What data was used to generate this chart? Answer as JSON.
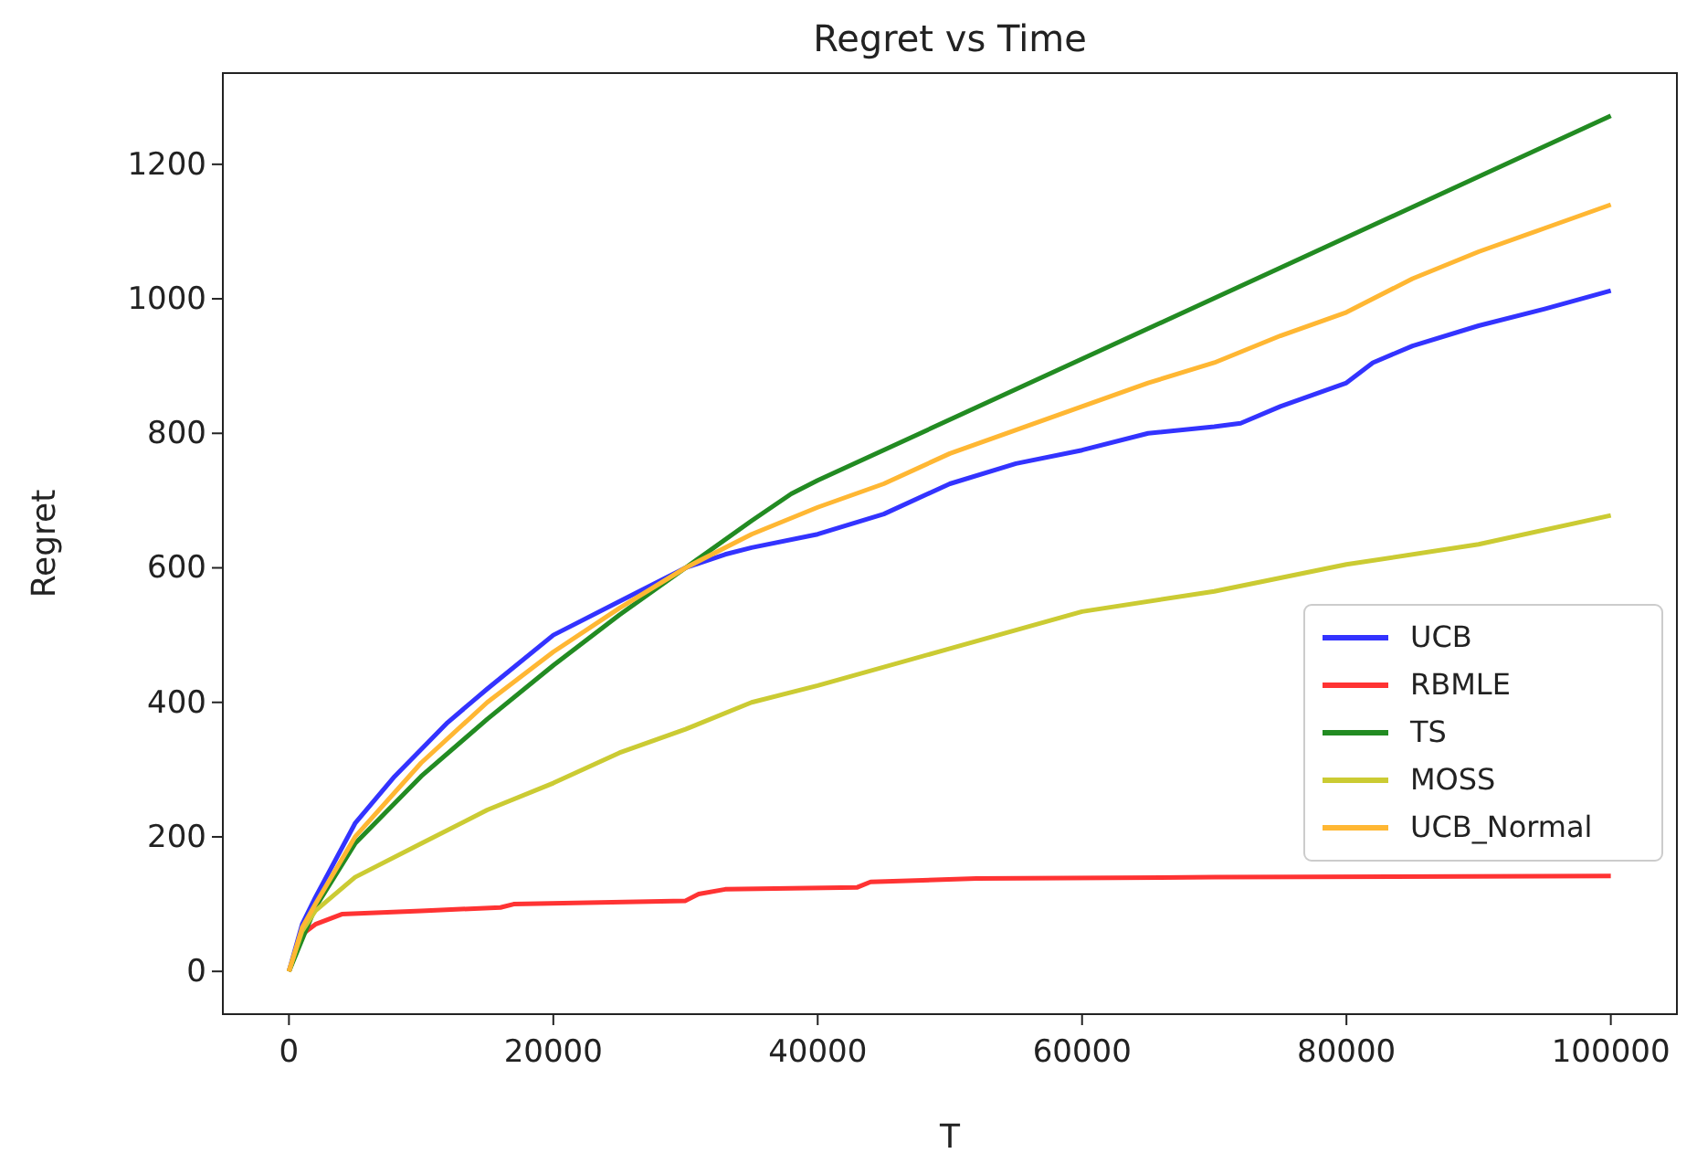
{
  "chart_data": {
    "type": "line",
    "title": "Regret vs Time",
    "xlabel": "T",
    "ylabel": "Regret",
    "xlim": [
      -5000,
      105000
    ],
    "ylim": [
      -63.6,
      1335.6
    ],
    "xticks": [
      0,
      20000,
      40000,
      60000,
      80000,
      100000
    ],
    "yticks": [
      0,
      200,
      400,
      600,
      800,
      1000,
      1200
    ],
    "legend": "bottom right",
    "grid": false,
    "series": [
      {
        "name": "UCB",
        "color": "#3333ff",
        "x": [
          0,
          1000,
          2000,
          5000,
          8000,
          10000,
          12000,
          15000,
          20000,
          25000,
          30000,
          33000,
          35000,
          40000,
          45000,
          50000,
          55000,
          60000,
          65000,
          70000,
          72000,
          75000,
          80000,
          82000,
          85000,
          90000,
          95000,
          100000
        ],
        "values": [
          0,
          70,
          110,
          220,
          290,
          330,
          370,
          420,
          500,
          550,
          600,
          620,
          630,
          650,
          680,
          725,
          755,
          775,
          800,
          810,
          815,
          840,
          875,
          905,
          930,
          960,
          985,
          1012
        ]
      },
      {
        "name": "RBMLE",
        "color": "#ff3333",
        "x": [
          0,
          1000,
          2000,
          4000,
          10000,
          16000,
          17000,
          30000,
          31000,
          33000,
          43000,
          44000,
          52000,
          70000,
          100000
        ],
        "values": [
          0,
          55,
          70,
          85,
          90,
          95,
          100,
          105,
          115,
          122,
          125,
          133,
          138,
          140,
          142
        ]
      },
      {
        "name": "TS",
        "color": "#228b22",
        "x": [
          0,
          1000,
          2000,
          5000,
          10000,
          15000,
          20000,
          25000,
          30000,
          35000,
          38000,
          40000,
          100000
        ],
        "values": [
          0,
          null,
          95,
          190,
          290,
          375,
          455,
          530,
          600,
          670,
          710,
          730,
          1272
        ]
      },
      {
        "name": "MOSS",
        "color": "#cbcb33",
        "x": [
          0,
          1000,
          2000,
          5000,
          10000,
          15000,
          20000,
          25000,
          30000,
          35000,
          40000,
          50000,
          60000,
          70000,
          80000,
          90000,
          100000
        ],
        "values": [
          0,
          60,
          90,
          140,
          190,
          240,
          280,
          325,
          360,
          400,
          425,
          480,
          535,
          565,
          605,
          635,
          678
        ]
      },
      {
        "name": "UCB_Normal",
        "color": "#ffb733",
        "x": [
          0,
          1000,
          2000,
          5000,
          10000,
          15000,
          20000,
          25000,
          30000,
          35000,
          40000,
          45000,
          50000,
          55000,
          60000,
          65000,
          70000,
          75000,
          80000,
          85000,
          90000,
          95000,
          100000
        ],
        "values": [
          0,
          65,
          100,
          200,
          310,
          400,
          475,
          540,
          600,
          650,
          690,
          725,
          770,
          805,
          840,
          875,
          905,
          945,
          980,
          1030,
          1070,
          1105,
          1140
        ]
      }
    ]
  }
}
